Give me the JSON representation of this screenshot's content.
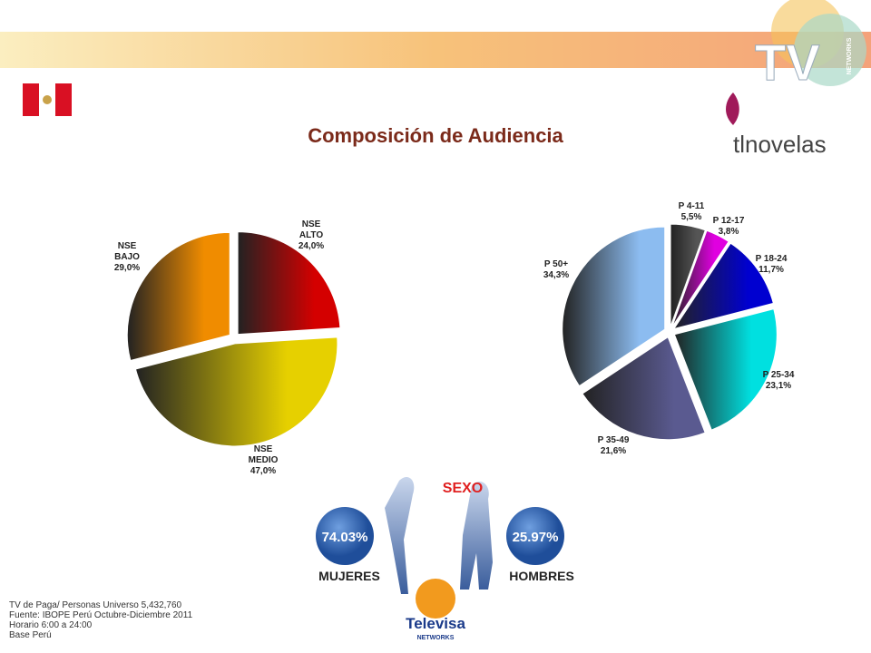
{
  "title": "Composición de Audiencia",
  "logos": {
    "tv": "TV",
    "networks": "NETWORKS",
    "channel": "tlnovelas",
    "televisa": "Televisa",
    "televisa_sub": "NETWORKS"
  },
  "chart_data": [
    {
      "type": "pie",
      "categories": [
        "NSE ALTO",
        "NSE MEDIO",
        "NSE BAJO"
      ],
      "values": [
        24.0,
        47.0,
        29.0
      ],
      "value_labels": [
        "24,0%",
        "47,0%",
        "29,0%"
      ],
      "colors": [
        "#d40000",
        "#e6d000",
        "#f08c00"
      ]
    },
    {
      "type": "pie",
      "categories": [
        "P 4-11",
        "P 12-17",
        "P 18-24",
        "P 25-34",
        "P 35-49",
        "P 50+"
      ],
      "values": [
        5.5,
        3.8,
        11.7,
        23.1,
        21.6,
        34.3
      ],
      "value_labels": [
        "5,5%",
        "3,8%",
        "11,7%",
        "23,1%",
        "21,6%",
        "34,3%"
      ],
      "colors": [
        "#555555",
        "#e000e0",
        "#0000d0",
        "#00e0e0",
        "#5a5a90",
        "#8cbcf0"
      ]
    }
  ],
  "sexo": {
    "title": "SEXO",
    "mujeres": {
      "label": "MUJERES",
      "value": "74.03%"
    },
    "hombres": {
      "label": "HOMBRES",
      "value": "25.97%"
    }
  },
  "footer": [
    "TV de Paga/ Personas Universo 5,432,760",
    "Fuente: IBOPE Perú Octubre-Diciembre 2011",
    "Horario 6:00 a 24:00",
    "Base Perú"
  ]
}
